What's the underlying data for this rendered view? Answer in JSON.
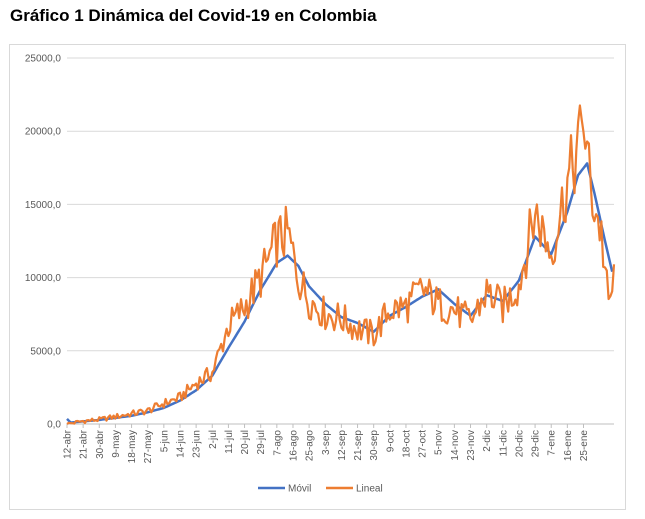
{
  "title": "Gráfico 1 Dinámica del Covid-19 en Colombia",
  "chart_data": {
    "type": "line",
    "title": "Gráfico 1 Dinámica del Covid-19 en Colombia",
    "xlabel": "",
    "ylabel": "",
    "ylim": [
      0,
      25000
    ],
    "y_ticks": [
      "0,0",
      "5000,0",
      "10000,0",
      "15000,0",
      "20000,0",
      "25000,0"
    ],
    "grid": "horizontal",
    "legend_position": "bottom",
    "x_tick_labels": [
      "12-abr",
      "21-abr",
      "30-abr",
      "9-may",
      "18-may",
      "27-may",
      "5-jun",
      "14-jun",
      "23-jun",
      "2-jul",
      "11-jul",
      "20-jul",
      "29-jul",
      "7-ago",
      "16-ago",
      "25-ago",
      "3-sep",
      "12-sep",
      "21-sep",
      "30-sep",
      "9-oct",
      "18-oct",
      "27-oct",
      "5-nov",
      "14-nov",
      "23-nov",
      "2-dic",
      "11-dic",
      "20-dic",
      "29-dic",
      "7-ene",
      "16-ene",
      "25-ene"
    ],
    "tick_every_days": 9,
    "colors": {
      "movil": "#4472c4",
      "lineal": "#ed7d31"
    },
    "series": [
      {
        "name": "Móvil",
        "color": "#4472c4",
        "keypoints": [
          [
            0,
            350
          ],
          [
            2,
            100
          ],
          [
            9,
            180
          ],
          [
            18,
            280
          ],
          [
            27,
            420
          ],
          [
            36,
            560
          ],
          [
            45,
            800
          ],
          [
            54,
            1100
          ],
          [
            63,
            1600
          ],
          [
            72,
            2300
          ],
          [
            81,
            3300
          ],
          [
            90,
            5200
          ],
          [
            99,
            7000
          ],
          [
            108,
            9200
          ],
          [
            117,
            11000
          ],
          [
            123,
            11500
          ],
          [
            129,
            10800
          ],
          [
            135,
            9400
          ],
          [
            144,
            8200
          ],
          [
            153,
            7300
          ],
          [
            162,
            6900
          ],
          [
            171,
            6300
          ],
          [
            180,
            7400
          ],
          [
            189,
            8000
          ],
          [
            198,
            8700
          ],
          [
            207,
            9200
          ],
          [
            216,
            8200
          ],
          [
            225,
            7400
          ],
          [
            234,
            8800
          ],
          [
            243,
            8400
          ],
          [
            252,
            9800
          ],
          [
            261,
            12800
          ],
          [
            270,
            11600
          ],
          [
            279,
            14500
          ],
          [
            285,
            17000
          ],
          [
            290,
            17800
          ],
          [
            294,
            15800
          ],
          [
            300,
            12500
          ],
          [
            304,
            10400
          ]
        ]
      },
      {
        "name": "Lineal",
        "color": "#ed7d31",
        "keypoints": [
          [
            0,
            0
          ],
          [
            9,
            200
          ],
          [
            18,
            300
          ],
          [
            27,
            500
          ],
          [
            36,
            700
          ],
          [
            45,
            900
          ],
          [
            54,
            1400
          ],
          [
            63,
            1800
          ],
          [
            72,
            2800
          ],
          [
            81,
            3500
          ],
          [
            90,
            6700
          ],
          [
            99,
            8000
          ],
          [
            108,
            10000
          ],
          [
            117,
            12500
          ],
          [
            123,
            13000
          ],
          [
            129,
            10000
          ],
          [
            135,
            8500
          ],
          [
            144,
            7500
          ],
          [
            153,
            7200
          ],
          [
            162,
            6500
          ],
          [
            171,
            6100
          ],
          [
            180,
            7800
          ],
          [
            189,
            8000
          ],
          [
            198,
            9200
          ],
          [
            207,
            8200
          ],
          [
            216,
            7800
          ],
          [
            225,
            7000
          ],
          [
            234,
            9000
          ],
          [
            243,
            8000
          ],
          [
            252,
            9500
          ],
          [
            261,
            14500
          ],
          [
            270,
            11700
          ],
          [
            279,
            16500
          ],
          [
            284,
            18300
          ],
          [
            288,
            21000
          ],
          [
            292,
            16000
          ],
          [
            298,
            13000
          ],
          [
            302,
            8000
          ],
          [
            305,
            9900
          ]
        ]
      }
    ]
  },
  "legend": {
    "items": [
      "Móvil",
      "Lineal"
    ]
  }
}
